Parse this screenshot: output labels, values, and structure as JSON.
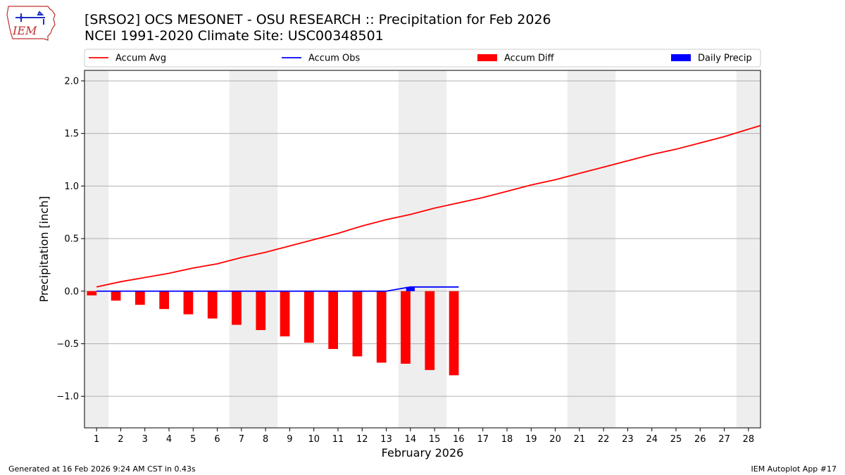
{
  "header": {
    "title_line1": "[SRSO2] OCS MESONET - OSU RESEARCH :: Precipitation for Feb 2026",
    "title_line2": "NCEI 1991-2020 Climate Site: USC00348501",
    "logo_text": "IEM"
  },
  "footer": {
    "generated": "Generated at 16 Feb 2026 9:24 AM CST in 0.43s",
    "app": "IEM Autoplot App #17"
  },
  "colors": {
    "avg_line": "#ff0000",
    "obs_line": "#0000ff",
    "diff_bar": "#ff0000",
    "daily_bar": "#0000ff",
    "weekend_band": "#eeeeee",
    "grid": "#b0b0b0"
  },
  "chart_data": {
    "type": "bar",
    "xlabel": "February 2026",
    "ylabel": "Precipitation [inch]",
    "xlim": [
      0.5,
      28.5
    ],
    "ylim": [
      -1.3,
      2.1
    ],
    "yticks": [
      -1.0,
      -0.5,
      0.0,
      0.5,
      1.0,
      1.5,
      2.0
    ],
    "ytick_labels": [
      "−1.0",
      "−0.5",
      "0.0",
      "0.5",
      "1.0",
      "1.5",
      "2.0"
    ],
    "grid": "horizontal",
    "legend_position": "top, above plot",
    "days": [
      1,
      2,
      3,
      4,
      5,
      6,
      7,
      8,
      9,
      10,
      11,
      12,
      13,
      14,
      15,
      16,
      17,
      18,
      19,
      20,
      21,
      22,
      23,
      24,
      25,
      26,
      27,
      28
    ],
    "shaded_days": [
      1,
      7,
      8,
      14,
      15,
      21,
      22,
      28
    ],
    "series": [
      {
        "name": "Accum Avg",
        "kind": "line",
        "x": [
          1,
          2,
          3,
          4,
          5,
          6,
          7,
          8,
          9,
          10,
          11,
          12,
          13,
          14,
          15,
          16,
          17,
          18,
          19,
          20,
          21,
          22,
          23,
          24,
          25,
          26,
          27,
          28,
          29
        ],
        "values": [
          0.04,
          0.09,
          0.13,
          0.17,
          0.22,
          0.26,
          0.32,
          0.37,
          0.43,
          0.49,
          0.55,
          0.62,
          0.68,
          0.73,
          0.79,
          0.84,
          0.89,
          0.95,
          1.01,
          1.06,
          1.12,
          1.18,
          1.24,
          1.3,
          1.35,
          1.41,
          1.47,
          1.54,
          1.61
        ]
      },
      {
        "name": "Accum Obs",
        "kind": "line",
        "x": [
          1,
          2,
          3,
          4,
          5,
          6,
          7,
          8,
          9,
          10,
          11,
          12,
          13,
          14,
          15,
          16
        ],
        "values": [
          0.0,
          0.0,
          0.0,
          0.0,
          0.0,
          0.0,
          0.0,
          0.0,
          0.0,
          0.0,
          0.0,
          0.0,
          0.0,
          0.04,
          0.04,
          0.04
        ]
      },
      {
        "name": "Accum Diff",
        "kind": "bar",
        "x": [
          1,
          2,
          3,
          4,
          5,
          6,
          7,
          8,
          9,
          10,
          11,
          12,
          13,
          14,
          15,
          16
        ],
        "values": [
          -0.04,
          -0.09,
          -0.13,
          -0.17,
          -0.22,
          -0.26,
          -0.32,
          -0.37,
          -0.43,
          -0.49,
          -0.55,
          -0.62,
          -0.68,
          -0.69,
          -0.75,
          -0.8
        ]
      },
      {
        "name": "Daily Precip",
        "kind": "bar",
        "x": [
          1,
          2,
          3,
          4,
          5,
          6,
          7,
          8,
          9,
          10,
          11,
          12,
          13,
          14,
          15,
          16
        ],
        "values": [
          0,
          0,
          0,
          0,
          0,
          0,
          0,
          0,
          0,
          0,
          0,
          0,
          0,
          0.04,
          0,
          0
        ]
      }
    ]
  }
}
